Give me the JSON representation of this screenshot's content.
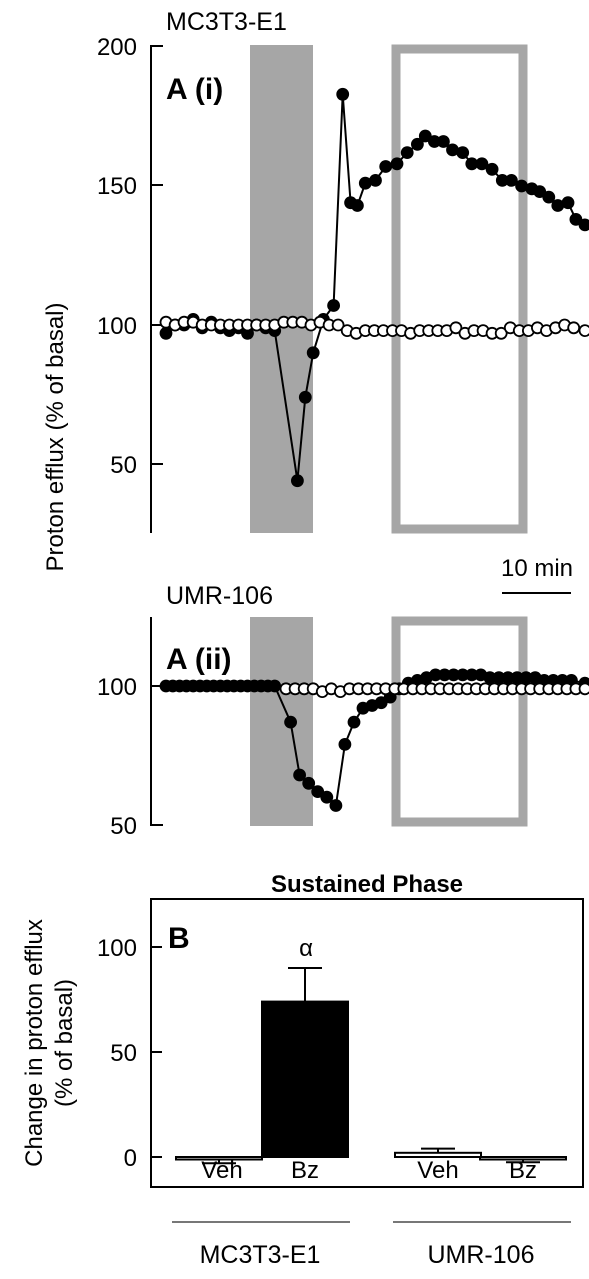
{
  "figure": {
    "ylabel_a": "Proton efflux (% of basal)",
    "scale_bar_label": "10 min"
  },
  "chart_data": [
    {
      "type": "line",
      "panel_label": "A (i)",
      "cell_line": "MC3T3-E1",
      "ylim": [
        25,
        200
      ],
      "yticks": [
        "50",
        "100",
        "150",
        "200"
      ],
      "x_unit": "min",
      "shaded_window": [
        10.8,
        15.3
      ],
      "outlined_window": [
        20.5,
        29.5
      ],
      "series": [
        {
          "marker": "filled",
          "x": [
            0,
            0.8,
            1.6,
            2.4,
            3.2,
            4.0,
            4.8,
            5.6,
            6.4,
            7.2,
            8.0,
            8.8,
            9.6,
            11.6,
            12.3,
            13.0,
            13.9,
            14.8,
            15.6,
            16.3,
            16.9,
            17.6,
            18.5,
            19.4,
            20.4,
            21.3,
            22.2,
            22.9,
            23.7,
            24.5,
            25.3,
            26.2,
            27.0,
            27.9,
            28.8,
            29.7,
            30.5,
            31.4,
            32.3,
            33.0,
            33.8,
            34.6,
            35.5,
            36.2,
            37.0
          ],
          "y": [
            97,
            100,
            100,
            102,
            99,
            101,
            99,
            98,
            99,
            97,
            100,
            99,
            98,
            44,
            74,
            90,
            102,
            107,
            183,
            144,
            143,
            151,
            152,
            157,
            158,
            162,
            165,
            168,
            166,
            166,
            163,
            162,
            158,
            158,
            156,
            152,
            152,
            150,
            149,
            148,
            146,
            143,
            144,
            138,
            136
          ]
        },
        {
          "marker": "open",
          "x": [
            0,
            0.8,
            1.6,
            2.4,
            3.2,
            4.0,
            4.8,
            5.6,
            6.4,
            7.2,
            8.0,
            8.8,
            9.6,
            10.4,
            11.2,
            12.0,
            12.8,
            13.6,
            14.4,
            15.2,
            16.0,
            16.8,
            17.6,
            18.4,
            19.2,
            20.0,
            20.8,
            21.6,
            22.4,
            23.2,
            24.0,
            24.8,
            25.6,
            26.4,
            27.2,
            28.0,
            28.8,
            29.6,
            30.4,
            31.2,
            32.0,
            32.8,
            33.6,
            34.4,
            35.2,
            36.0,
            37.0
          ],
          "y": [
            101,
            100,
            101,
            101,
            100,
            100,
            100,
            100,
            100,
            100,
            100,
            100,
            100,
            101,
            101,
            101,
            100,
            101,
            100,
            100,
            98,
            97,
            98,
            98,
            98,
            98,
            98,
            97,
            98,
            98,
            98,
            98,
            99,
            97,
            98,
            98,
            97,
            97,
            99,
            98,
            98,
            99,
            98,
            99,
            100,
            99,
            98
          ]
        }
      ]
    },
    {
      "type": "line",
      "panel_label": "A (ii)",
      "cell_line": "UMR-106",
      "ylim": [
        50,
        125
      ],
      "yticks": [
        "50",
        "100"
      ],
      "x_unit": "min",
      "shaded_window": [
        10.8,
        15.3
      ],
      "outlined_window": [
        20.5,
        29.5
      ],
      "series": [
        {
          "marker": "filled",
          "x": [
            0,
            0.6,
            1.2,
            1.8,
            2.4,
            3.0,
            3.6,
            4.2,
            4.8,
            5.4,
            6.0,
            6.6,
            7.2,
            7.8,
            8.4,
            9.0,
            9.6,
            11.0,
            11.8,
            12.6,
            13.4,
            14.2,
            15.0,
            15.8,
            16.6,
            17.4,
            18.2,
            19.0,
            19.8,
            20.6,
            21.4,
            22.2,
            23.0,
            23.8,
            24.6,
            25.4,
            26.2,
            27.0,
            27.8,
            28.6,
            29.4,
            30.2,
            31.0,
            31.8,
            32.6,
            33.4,
            34.2,
            35.0,
            35.8,
            37.0
          ],
          "y": [
            100,
            100,
            100,
            100,
            100,
            100,
            100,
            100,
            100,
            100,
            100,
            100,
            100,
            100,
            100,
            100,
            100,
            87,
            68,
            65,
            62,
            60,
            57,
            79,
            87,
            92,
            93,
            94,
            96,
            99,
            101,
            102,
            103,
            104,
            104,
            104,
            104,
            104,
            104,
            103,
            103,
            103,
            103,
            103,
            103,
            102,
            102,
            102,
            102,
            101
          ]
        },
        {
          "marker": "open",
          "x": [
            10.6,
            11.4,
            12.2,
            13.0,
            13.8,
            14.6,
            15.4,
            16.2,
            17.0,
            17.8,
            18.6,
            19.4,
            20.2,
            21.0,
            21.8,
            22.6,
            23.4,
            24.2,
            25.0,
            25.8,
            26.6,
            27.4,
            28.2,
            29.0,
            29.8,
            30.6,
            31.4,
            32.2,
            33.0,
            33.8,
            34.6,
            35.4,
            36.2,
            37.0
          ],
          "y": [
            99,
            99,
            99,
            99,
            98,
            99,
            98,
            99,
            99,
            99,
            99,
            99,
            99,
            99,
            99,
            99,
            99,
            99,
            99,
            99,
            99,
            99,
            99,
            99,
            99,
            99,
            99,
            99,
            99,
            99,
            99,
            99,
            99,
            99
          ]
        }
      ]
    },
    {
      "type": "bar",
      "panel_label": "B",
      "title": "Sustained Phase",
      "ylabel_line1": "Change in proton efflux",
      "ylabel_line2": "(% of basal)",
      "ylim": [
        -10,
        125
      ],
      "yticks": [
        "0",
        "50",
        "100"
      ],
      "categories": [
        "Veh",
        "Bz",
        "Veh",
        "Bz"
      ],
      "groups": [
        "MC3T3-E1",
        "UMR-106"
      ],
      "values": [
        -1,
        74,
        2,
        -1
      ],
      "errors": [
        2,
        16,
        2,
        1.5
      ],
      "fills": [
        "#ffffff",
        "#000000",
        "#ffffff",
        "#ffffff"
      ],
      "annotation": "α"
    }
  ]
}
